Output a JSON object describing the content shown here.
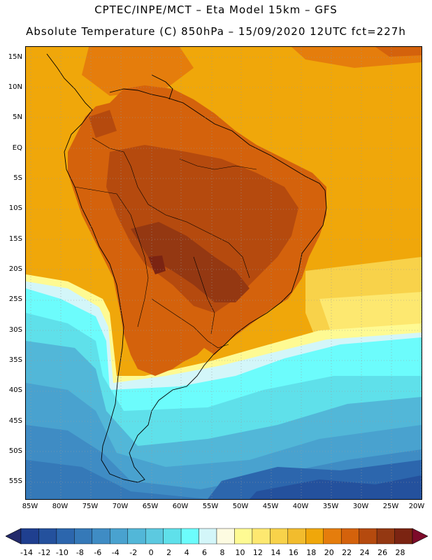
{
  "title_line1": "CPTEC/INPE/MCT –   Eta Model 15km – GFS",
  "title_line2": "Absolute Temperature (C) 850hPa – 15/09/2020 12UTC fct=227h",
  "lat_labels": [
    "15N",
    "10N",
    "5N",
    "EQ",
    "5S",
    "10S",
    "15S",
    "20S",
    "25S",
    "30S",
    "35S",
    "40S",
    "45S",
    "50S",
    "55S"
  ],
  "lon_labels": [
    "85W",
    "80W",
    "75W",
    "70W",
    "65W",
    "60W",
    "55W",
    "50W",
    "45W",
    "40W",
    "35W",
    "30W",
    "25W",
    "20W"
  ],
  "colorbar": {
    "labels": [
      "-14",
      "-12",
      "-10",
      "-8",
      "-6",
      "-4",
      "-2",
      "0",
      "2",
      "4",
      "6",
      "8",
      "10",
      "12",
      "14",
      "16",
      "18",
      "20",
      "22",
      "24",
      "26",
      "28"
    ],
    "colors": [
      "#1f3f8f",
      "#24519d",
      "#2c66ad",
      "#3579b8",
      "#3f8cc4",
      "#49a2cf",
      "#52b7d8",
      "#5cc9e0",
      "#5fe0ea",
      "#6cfcfc",
      "#d3f6f9",
      "#fdfbe1",
      "#fefa93",
      "#fde870",
      "#f8d24a",
      "#f2bc2d",
      "#f0a70a",
      "#e57d0c",
      "#d4620c",
      "#b54a0e",
      "#943812",
      "#7b2412"
    ],
    "under_color": "#232a6b",
    "over_color": "#7d0a2a"
  }
}
